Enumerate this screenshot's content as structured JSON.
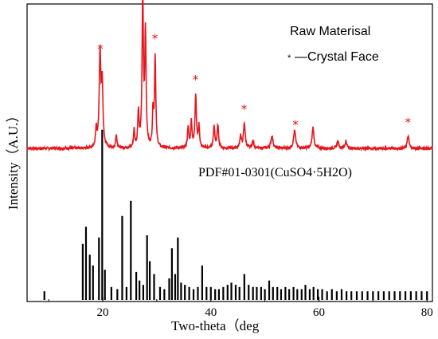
{
  "chart_data": {
    "type": "line",
    "xlabel": "Two-theta（deg",
    "ylabel": "Intensity（A.U.）",
    "xlim": [
      6,
      81
    ],
    "xticks": [
      "20",
      "40",
      "60",
      "80"
    ],
    "xtick_values": [
      20,
      40,
      60,
      80
    ],
    "grid": false,
    "colors": {
      "raw": "#e8151b",
      "reference": "#000000",
      "axis": "#000000"
    },
    "legend": {
      "line1": "Raw Materisal",
      "line2_marker": "*",
      "line2_text": "—Crystal Face",
      "placement": "top-right"
    },
    "annotation": "PDF#01-0301(CuSO4·5H2O)",
    "series": [
      {
        "name": "Raw Materisal",
        "type": "line",
        "baseline": 0,
        "noise": 0.015,
        "peaks": [
          {
            "x": 18.8,
            "h": 0.1,
            "w": 0.22
          },
          {
            "x": 19.5,
            "h": 0.53,
            "w": 0.28
          },
          {
            "x": 19.9,
            "h": 0.35,
            "w": 0.25
          },
          {
            "x": 22.5,
            "h": 0.08,
            "w": 0.2
          },
          {
            "x": 25.8,
            "h": 0.1,
            "w": 0.2
          },
          {
            "x": 26.6,
            "h": 0.2,
            "w": 0.22
          },
          {
            "x": 27.4,
            "h": 0.88,
            "w": 0.22
          },
          {
            "x": 27.9,
            "h": 0.65,
            "w": 0.22
          },
          {
            "x": 29.7,
            "h": 0.52,
            "w": 0.22
          },
          {
            "x": 29.3,
            "h": 0.2,
            "w": 0.2
          },
          {
            "x": 35.8,
            "h": 0.12,
            "w": 0.22
          },
          {
            "x": 36.4,
            "h": 0.15,
            "w": 0.22
          },
          {
            "x": 37.2,
            "h": 0.3,
            "w": 0.25
          },
          {
            "x": 37.8,
            "h": 0.12,
            "w": 0.22
          },
          {
            "x": 40.6,
            "h": 0.12,
            "w": 0.25
          },
          {
            "x": 41.3,
            "h": 0.13,
            "w": 0.25
          },
          {
            "x": 45.5,
            "h": 0.07,
            "w": 0.25
          },
          {
            "x": 46.2,
            "h": 0.14,
            "w": 0.3
          },
          {
            "x": 47.8,
            "h": 0.04,
            "w": 0.3
          },
          {
            "x": 51.3,
            "h": 0.07,
            "w": 0.35
          },
          {
            "x": 55.5,
            "h": 0.1,
            "w": 0.35
          },
          {
            "x": 58.9,
            "h": 0.12,
            "w": 0.3
          },
          {
            "x": 63.5,
            "h": 0.04,
            "w": 0.3
          },
          {
            "x": 65.0,
            "h": 0.04,
            "w": 0.3
          },
          {
            "x": 76.5,
            "h": 0.07,
            "w": 0.3
          }
        ],
        "crystal_face_markers": [
          19.6,
          27.4,
          29.7,
          37.2,
          46.2,
          55.7,
          76.5
        ]
      },
      {
        "name": "PDF#01-0301(CuSO4·5H2O)",
        "type": "stick",
        "sticks": [
          [
            9.2,
            0.04
          ],
          [
            16.3,
            0.26
          ],
          [
            16.9,
            0.34
          ],
          [
            17.6,
            0.21
          ],
          [
            18.2,
            0.16
          ],
          [
            19.3,
            0.29
          ],
          [
            19.9,
            0.79
          ],
          [
            20.4,
            0.14
          ],
          [
            21.6,
            0.06
          ],
          [
            22.7,
            0.05
          ],
          [
            23.6,
            0.39
          ],
          [
            24.4,
            0.06
          ],
          [
            25.2,
            0.46
          ],
          [
            26.2,
            0.13
          ],
          [
            26.8,
            0.09
          ],
          [
            27.5,
            0.07
          ],
          [
            28.2,
            0.3
          ],
          [
            28.7,
            0.18
          ],
          [
            29.5,
            0.12
          ],
          [
            30.6,
            0.06
          ],
          [
            31.4,
            0.05
          ],
          [
            32.3,
            0.1
          ],
          [
            32.8,
            0.24
          ],
          [
            33.4,
            0.12
          ],
          [
            33.9,
            0.29
          ],
          [
            34.5,
            0.08
          ],
          [
            35.2,
            0.07
          ],
          [
            36.0,
            0.06
          ],
          [
            36.8,
            0.05
          ],
          [
            37.6,
            0.06
          ],
          [
            38.4,
            0.16
          ],
          [
            39.2,
            0.06
          ],
          [
            40.0,
            0.06
          ],
          [
            40.8,
            0.05
          ],
          [
            41.5,
            0.05
          ],
          [
            42.3,
            0.06
          ],
          [
            43.1,
            0.07
          ],
          [
            43.8,
            0.08
          ],
          [
            44.6,
            0.07
          ],
          [
            45.3,
            0.06
          ],
          [
            46.2,
            0.12
          ],
          [
            47.0,
            0.07
          ],
          [
            47.8,
            0.06
          ],
          [
            48.5,
            0.06
          ],
          [
            49.3,
            0.06
          ],
          [
            50.0,
            0.05
          ],
          [
            50.8,
            0.09
          ],
          [
            51.5,
            0.06
          ],
          [
            52.3,
            0.06
          ],
          [
            53.0,
            0.05
          ],
          [
            53.8,
            0.06
          ],
          [
            54.5,
            0.05
          ],
          [
            55.3,
            0.06
          ],
          [
            56.0,
            0.05
          ],
          [
            56.8,
            0.05
          ],
          [
            57.5,
            0.07
          ],
          [
            58.3,
            0.05
          ],
          [
            59.0,
            0.06
          ],
          [
            59.8,
            0.05
          ],
          [
            60.6,
            0.05
          ],
          [
            61.5,
            0.04
          ],
          [
            62.4,
            0.05
          ],
          [
            63.3,
            0.04
          ],
          [
            64.2,
            0.05
          ],
          [
            65.1,
            0.04
          ],
          [
            66.0,
            0.04
          ],
          [
            67.0,
            0.04
          ],
          [
            68.0,
            0.04
          ],
          [
            69.0,
            0.04
          ],
          [
            70.0,
            0.04
          ],
          [
            71.0,
            0.04
          ],
          [
            72.0,
            0.04
          ],
          [
            73.0,
            0.04
          ],
          [
            74.0,
            0.04
          ],
          [
            75.0,
            0.04
          ],
          [
            76.0,
            0.04
          ],
          [
            77.0,
            0.04
          ],
          [
            78.0,
            0.04
          ],
          [
            79.0,
            0.04
          ],
          [
            80.0,
            0.04
          ]
        ]
      }
    ]
  }
}
